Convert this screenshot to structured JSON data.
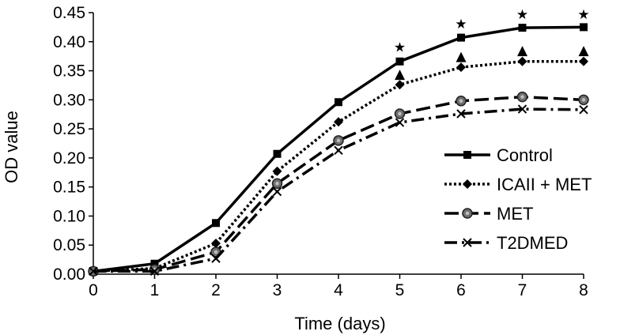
{
  "chart_data": {
    "type": "line",
    "title": "",
    "xlabel": "Time (days)",
    "ylabel": "OD value",
    "x": [
      0,
      1,
      2,
      3,
      4,
      5,
      6,
      7,
      8
    ],
    "xlim": [
      0,
      8
    ],
    "ylim": [
      0,
      0.45
    ],
    "x_ticks": [
      "0",
      "1",
      "2",
      "3",
      "4",
      "5",
      "6",
      "7",
      "8"
    ],
    "y_ticks": [
      "0.00",
      "0.05",
      "0.10",
      "0.15",
      "0.20",
      "0.25",
      "0.30",
      "0.35",
      "0.40",
      "0.45"
    ],
    "grid": false,
    "legend_position": "bottom-right",
    "series": [
      {
        "name": "Control",
        "values": [
          0.005,
          0.018,
          0.088,
          0.207,
          0.296,
          0.366,
          0.407,
          0.424,
          0.425
        ],
        "marker": "square",
        "dash": "solid",
        "color": "#000000"
      },
      {
        "name": "ICAII + MET",
        "values": [
          0.005,
          0.01,
          0.053,
          0.177,
          0.262,
          0.326,
          0.356,
          0.366,
          0.366
        ],
        "marker": "diamond",
        "dash": "dotted",
        "color": "#000000"
      },
      {
        "name": "MET",
        "values": [
          0.005,
          0.008,
          0.038,
          0.156,
          0.23,
          0.276,
          0.298,
          0.305,
          0.3
        ],
        "marker": "circle",
        "dash": "dashed",
        "color": "#000000"
      },
      {
        "name": "T2DMED",
        "values": [
          0.005,
          0.005,
          0.027,
          0.142,
          0.213,
          0.261,
          0.276,
          0.284,
          0.283
        ],
        "marker": "x",
        "dash": "dashdot",
        "color": "#000000"
      }
    ],
    "annotations": [
      {
        "x": 5,
        "y": 0.391,
        "text": "★"
      },
      {
        "x": 6,
        "y": 0.431,
        "text": "★"
      },
      {
        "x": 7,
        "y": 0.447,
        "text": "★"
      },
      {
        "x": 8,
        "y": 0.447,
        "text": "★"
      },
      {
        "x": 5,
        "y": 0.345,
        "text": "▲"
      },
      {
        "x": 6,
        "y": 0.376,
        "text": "▲"
      },
      {
        "x": 7,
        "y": 0.386,
        "text": "▲"
      },
      {
        "x": 8,
        "y": 0.386,
        "text": "▲"
      }
    ]
  }
}
